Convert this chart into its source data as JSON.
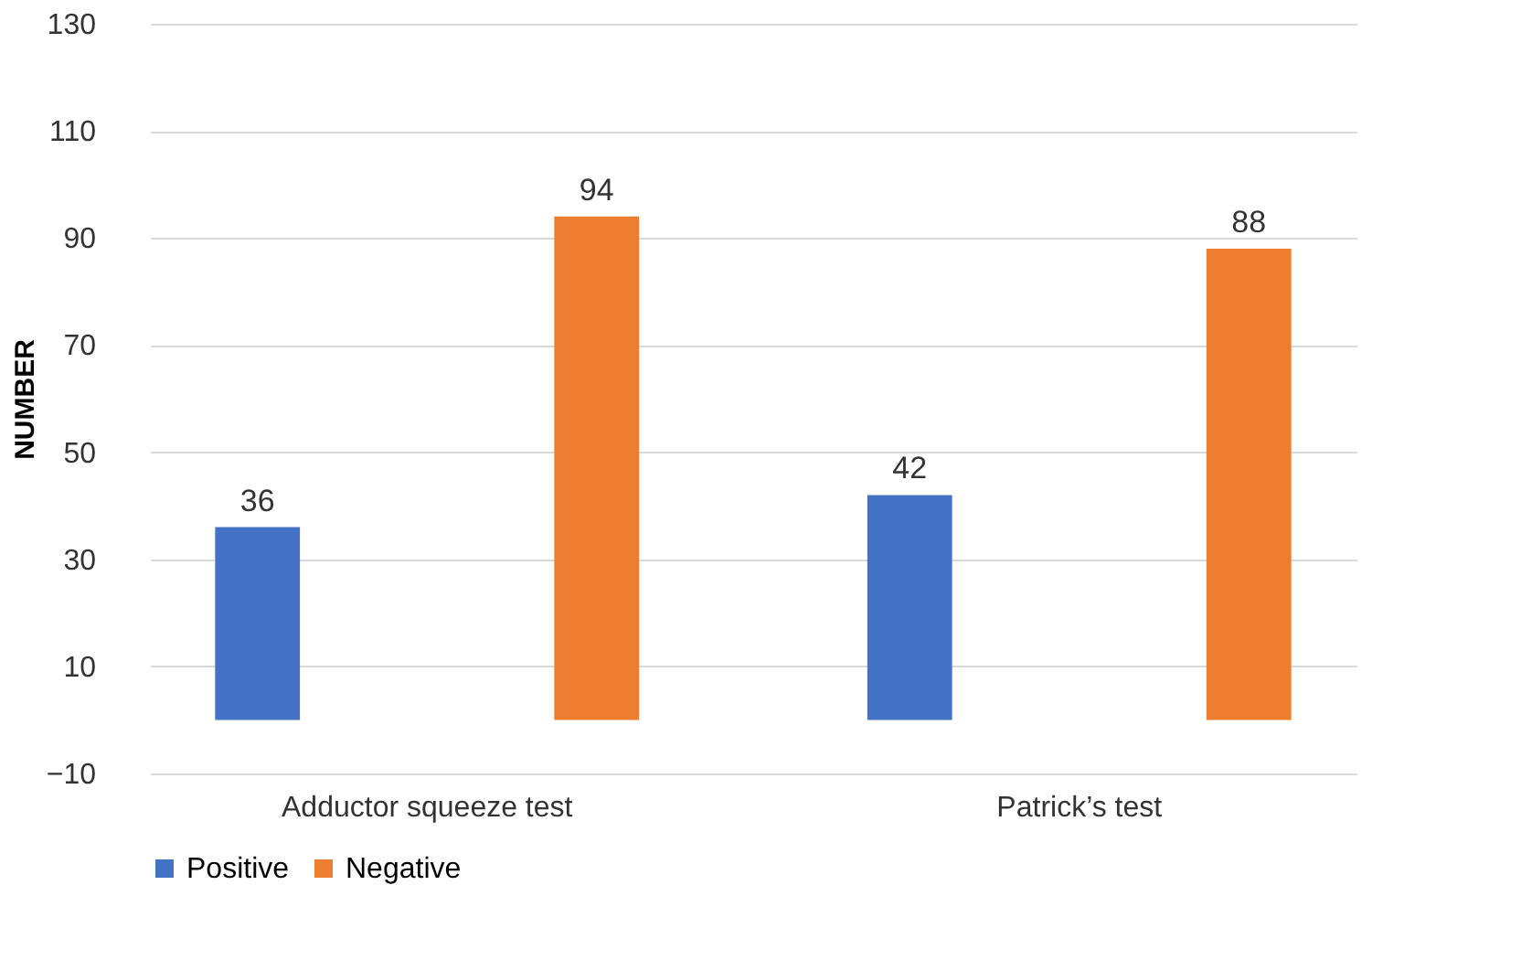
{
  "chart_data": {
    "type": "bar",
    "ylabel": "NUMBER",
    "categories": [
      "Adductor squeeze test",
      "Patrick’s test"
    ],
    "series": [
      {
        "name": "Positive",
        "color": "#4472c4",
        "values": [
          36,
          42
        ]
      },
      {
        "name": "Negative",
        "color": "#ed7d31",
        "values": [
          94,
          88
        ]
      }
    ],
    "ylim": [
      -10,
      130
    ],
    "yticks": [
      -10,
      10,
      30,
      50,
      70,
      90,
      110,
      130
    ],
    "grid": "y",
    "legend": "bottom",
    "data_labels": true
  }
}
